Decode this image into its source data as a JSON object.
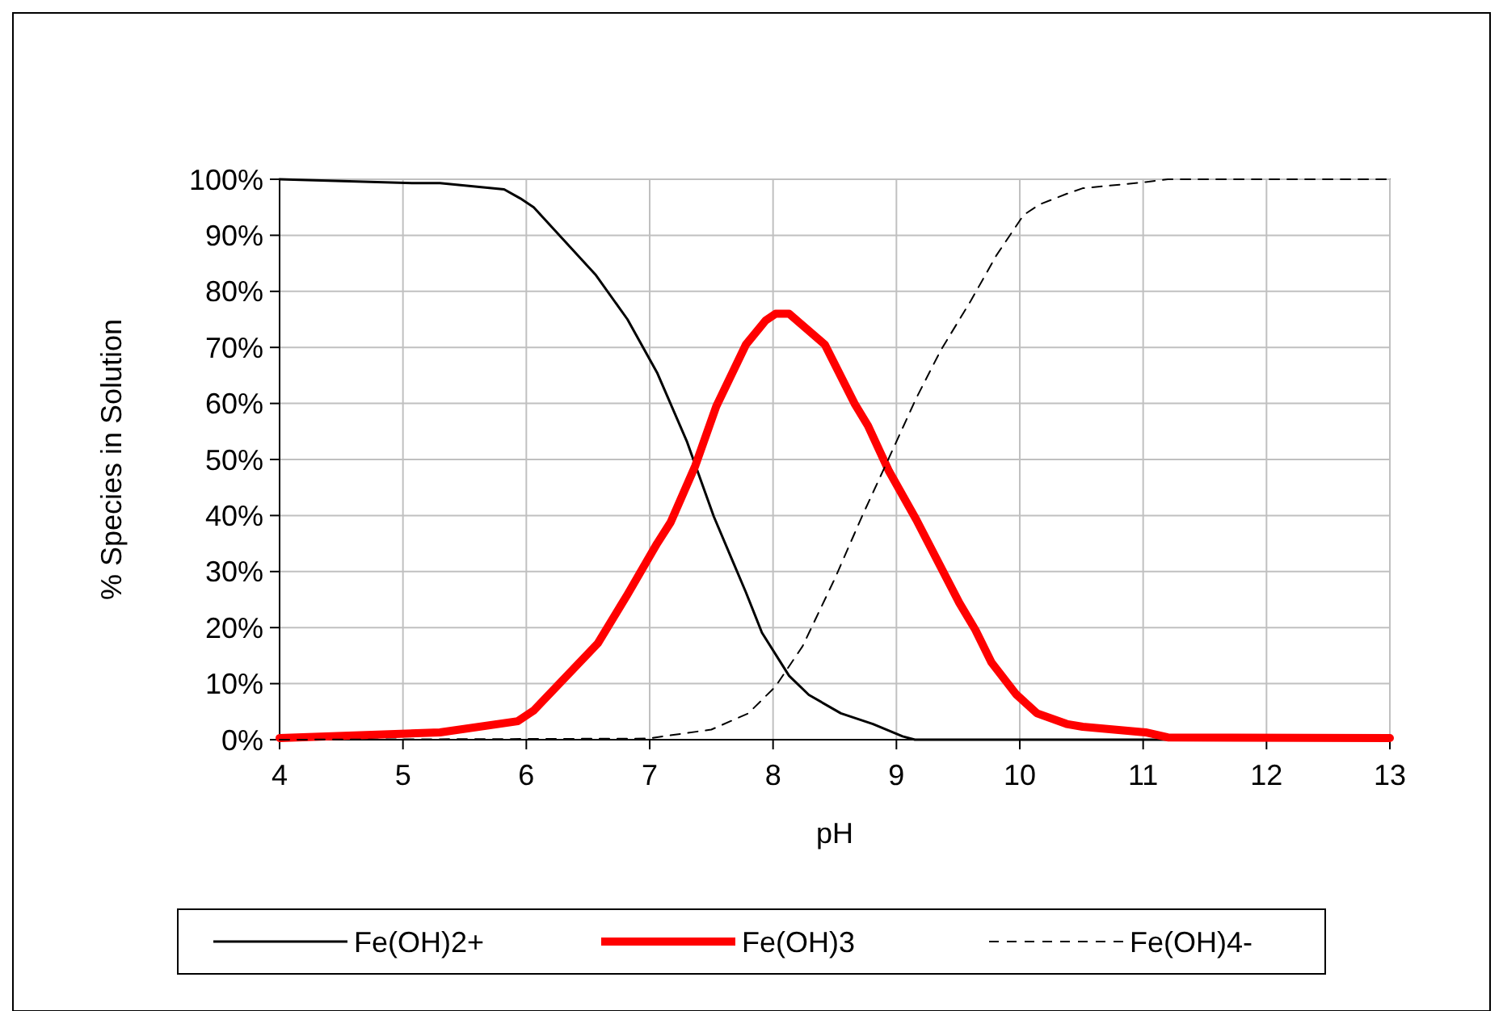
{
  "chart_data": {
    "type": "line",
    "xlabel": "pH",
    "ylabel": "% Species in Solution",
    "xlim": [
      4,
      13
    ],
    "xticks": [
      4,
      5,
      6,
      7,
      8,
      9,
      10,
      11,
      12,
      13
    ],
    "ylim": [
      0,
      100
    ],
    "yticks": [
      {
        "value": 0,
        "label": "0%"
      },
      {
        "value": 10,
        "label": "10%"
      },
      {
        "value": 20,
        "label": "20%"
      },
      {
        "value": 30,
        "label": "30%"
      },
      {
        "value": 40,
        "label": "40%"
      },
      {
        "value": 50,
        "label": "50%"
      },
      {
        "value": 60,
        "label": "60%"
      },
      {
        "value": 70,
        "label": "70%"
      },
      {
        "value": 80,
        "label": "80%"
      },
      {
        "value": 90,
        "label": "90%"
      },
      {
        "value": 100,
        "label": "100%"
      }
    ],
    "grid": true,
    "legend": "bottom",
    "marker": "none",
    "series": [
      {
        "name": "Fe(OH)2+",
        "color": "#000000",
        "line_style": "solid",
        "x": [
          4,
          5.08,
          5.3,
          5.82,
          5.95,
          6.06,
          6.56,
          6.82,
          7.06,
          7.3,
          7.52,
          7.67,
          7.78,
          7.91,
          8.13,
          8.29,
          8.55,
          8.81,
          9.05,
          9.15,
          13
        ],
        "values": [
          100,
          99.3,
          99.3,
          98.2,
          96.6,
          95,
          83,
          75,
          65.5,
          53.3,
          39.8,
          32,
          26.3,
          19.1,
          11.4,
          8,
          4.7,
          2.8,
          0.6,
          0,
          0
        ]
      },
      {
        "name": "Fe(OH)3",
        "color": "#ff0000",
        "line_style": "solid",
        "x": [
          4,
          5.3,
          5.93,
          6.06,
          6.58,
          6.82,
          7.06,
          7.17,
          7.37,
          7.54,
          7.78,
          7.94,
          8.02,
          8.13,
          8.42,
          8.66,
          8.77,
          8.94,
          9.16,
          9.51,
          9.64,
          9.77,
          9.97,
          10.14,
          10.38,
          10.51,
          11.02,
          11.2,
          13
        ],
        "values": [
          0.3,
          1.3,
          3.3,
          5.2,
          17.2,
          25.9,
          35,
          38.8,
          48.9,
          59.5,
          70.5,
          74.8,
          76,
          76,
          70.5,
          60,
          56,
          47.9,
          39.3,
          24.4,
          19.6,
          13.8,
          8.1,
          4.7,
          2.8,
          2.3,
          1.3,
          0.4,
          0.3
        ]
      },
      {
        "name": "Fe(OH)4-",
        "color": "#000000",
        "line_style": "dashed",
        "x": [
          4,
          6.98,
          7.5,
          7.8,
          8.02,
          8.24,
          8.5,
          8.72,
          8.94,
          9.16,
          9.36,
          9.6,
          9.81,
          10.03,
          10.16,
          10.38,
          10.51,
          11.02,
          11.2,
          13
        ],
        "values": [
          0,
          0.2,
          1.8,
          4.7,
          9.5,
          16.7,
          28.7,
          39.8,
          50.3,
          60.9,
          69.5,
          78.2,
          86.4,
          93.6,
          95.5,
          97.4,
          98.4,
          99.5,
          100,
          100
        ]
      }
    ]
  }
}
